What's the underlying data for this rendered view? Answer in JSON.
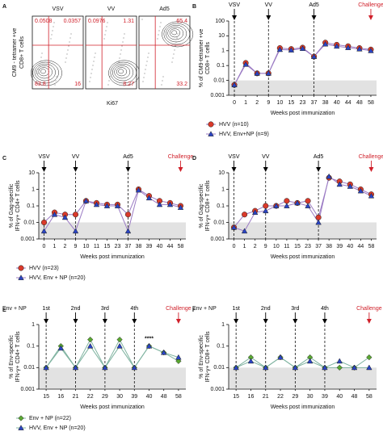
{
  "chart_data": [
    {
      "type": "flow",
      "panel": "A",
      "ylabel": [
        "CM9 - tetramer +ve",
        "CD8+ T cells"
      ],
      "xlabel": "Ki67",
      "quadrant_color": "#d0202a",
      "plots": [
        {
          "title": "VSV",
          "quadrants": [
            0.0508,
            0.0357,
            83.8,
            16
          ]
        },
        {
          "title": "VV",
          "quadrants": [
            0.0976,
            1.31,
            null,
            8.27
          ]
        },
        {
          "title": "Ad5",
          "quadrants": [
            null,
            65.4,
            null,
            33.2
          ]
        }
      ]
    },
    {
      "type": "line",
      "panel": "B",
      "ylabel": [
        "% of CM9-tetramer +ve",
        "CD8+ T cells"
      ],
      "xlabel": "Weeks post immunization",
      "categories": [
        "0",
        "1",
        "2",
        "9",
        "10",
        "15",
        "23",
        "37",
        "38",
        "40",
        "44",
        "48",
        "58"
      ],
      "ylog": true,
      "ylim": [
        0.001,
        100
      ],
      "yticks": [
        0.001,
        0.01,
        0.1,
        1,
        10,
        100
      ],
      "background": 0.01,
      "line_color": "#9b7bc4",
      "events": [
        {
          "label": "VSV",
          "category": "0",
          "color": "#000000",
          "dashed": true
        },
        {
          "label": "VV",
          "category": "9",
          "color": "#000000",
          "dashed": true
        },
        {
          "label": "Ad5",
          "category": "37",
          "color": "#000000",
          "dashed": true
        },
        {
          "label": "Challenge",
          "category": "58",
          "color": "#d0202a",
          "dashed": false
        }
      ],
      "series": [
        {
          "name": "HVV (n=10)",
          "color": "#d93a2b",
          "marker": "circle",
          "values": [
            0.005,
            0.15,
            0.03,
            0.03,
            1.5,
            1.3,
            1.6,
            0.4,
            3.5,
            2.5,
            2,
            1.5,
            1.2
          ]
        },
        {
          "name": "HVV, Env+NP (n=9)",
          "color": "#2a44c4",
          "marker": "triangle",
          "values": [
            0.005,
            0.12,
            0.03,
            0.03,
            1.2,
            1.1,
            1.4,
            0.4,
            2.8,
            2,
            1.6,
            1.3,
            1
          ]
        }
      ]
    },
    {
      "type": "line",
      "panel": "C",
      "ylabel": [
        "% of Gag-specific",
        "IFN-γ+ CD4+ T cells"
      ],
      "xlabel": "Weeks post immunization",
      "categories": [
        "0",
        "1",
        "2",
        "9",
        "10",
        "11",
        "15",
        "23",
        "37",
        "38",
        "39",
        "40",
        "44",
        "58"
      ],
      "ylog": true,
      "ylim": [
        0.001,
        10
      ],
      "yticks": [
        0.001,
        0.01,
        0.1,
        1,
        10
      ],
      "background": 0.01,
      "line_color": "#9b7bc4",
      "events": [
        {
          "label": "VSV",
          "category": "0",
          "color": "#000000",
          "dashed": true
        },
        {
          "label": "VV",
          "category": "9",
          "color": "#000000",
          "dashed": true
        },
        {
          "label": "Ad5",
          "category": "37",
          "color": "#000000",
          "dashed": true
        },
        {
          "label": "Challenge",
          "category": "58",
          "color": "#d0202a",
          "dashed": false
        }
      ],
      "series": [
        {
          "name": "HVV (n=23)",
          "color": "#d93a2b",
          "marker": "circle",
          "values": [
            0.01,
            0.04,
            0.03,
            0.03,
            0.2,
            0.15,
            0.12,
            0.12,
            0.03,
            1,
            0.4,
            0.2,
            0.15,
            0.1
          ]
        },
        {
          "name": "HVV, Env + NP (n=20)",
          "color": "#2a44c4",
          "marker": "triangle",
          "values": [
            0.003,
            0.03,
            0.02,
            0.003,
            0.2,
            0.12,
            0.1,
            0.1,
            0.003,
            0.9,
            0.3,
            0.12,
            0.12,
            0.08
          ]
        }
      ]
    },
    {
      "type": "line",
      "panel": "D",
      "ylabel": [
        "% of Gag-specific",
        "IFN-γ+ CD8+ T cells"
      ],
      "xlabel": "Weeks post immunization",
      "categories": [
        "0",
        "1",
        "2",
        "9",
        "10",
        "11",
        "15",
        "23",
        "37",
        "38",
        "39",
        "40",
        "44",
        "58"
      ],
      "ylog": true,
      "ylim": [
        0.001,
        10
      ],
      "yticks": [
        0.001,
        0.01,
        0.1,
        1,
        10
      ],
      "background": 0.01,
      "line_color": "#9b7bc4",
      "events": [
        {
          "label": "VSV",
          "category": "0",
          "color": "#000000",
          "dashed": true
        },
        {
          "label": "VV",
          "category": "9",
          "color": "#000000",
          "dashed": true
        },
        {
          "label": "Ad5",
          "category": "37",
          "color": "#000000",
          "dashed": true
        },
        {
          "label": "Challenge",
          "category": "58",
          "color": "#d0202a",
          "dashed": false
        }
      ],
      "series": [
        {
          "color": "#d93a2b",
          "marker": "circle",
          "values": [
            0.005,
            0.03,
            0.05,
            0.1,
            0.1,
            0.2,
            0.15,
            0.2,
            0.02,
            5,
            3,
            2,
            1,
            0.5
          ]
        },
        {
          "color": "#2a44c4",
          "marker": "triangle",
          "values": [
            0.005,
            0.003,
            0.04,
            0.05,
            0.1,
            0.1,
            0.15,
            0.1,
            0.01,
            6,
            2,
            1.5,
            0.8,
            0.4
          ]
        }
      ]
    },
    {
      "type": "line",
      "panel": "E",
      "group_label": "Env + NP",
      "ylabel": [
        "% of Env-specific",
        "IFN-γ+ CD4+ T cells"
      ],
      "xlabel": "Weeks post immunization",
      "categories": [
        "15",
        "16",
        "21",
        "22",
        "29",
        "30",
        "39",
        "40",
        "48",
        "58"
      ],
      "ylog": true,
      "ylim": [
        0.001,
        1
      ],
      "yticks": [
        0.001,
        0.01,
        0.1,
        1
      ],
      "background": 0.01,
      "line_color": "#7fb3a0",
      "events": [
        {
          "label": "1st",
          "category": "15",
          "color": "#000000",
          "dashed": true
        },
        {
          "label": "2nd",
          "category": "21",
          "color": "#000000",
          "dashed": true
        },
        {
          "label": "3rd",
          "category": "29",
          "color": "#000000",
          "dashed": true
        },
        {
          "label": "4th",
          "category": "39",
          "color": "#000000",
          "dashed": true
        },
        {
          "label": "Challenge",
          "category": "58",
          "color": "#d0202a",
          "dashed": false
        }
      ],
      "annotations": [
        {
          "text": "****",
          "category": "40"
        }
      ],
      "series": [
        {
          "name": "Env + NP (n=22)",
          "color": "#5aa832",
          "marker": "diamond",
          "values": [
            0.01,
            0.1,
            0.01,
            0.2,
            0.01,
            0.2,
            0.01,
            0.1,
            0.05,
            0.02
          ]
        },
        {
          "name": "HVV, Env + NP (n=20)",
          "color": "#2a44c4",
          "marker": "triangle",
          "values": [
            0.01,
            0.08,
            0.01,
            0.1,
            0.01,
            0.1,
            0.01,
            0.1,
            0.05,
            0.03
          ]
        }
      ]
    },
    {
      "type": "line",
      "panel": "F",
      "group_label": "Env + NP",
      "ylabel": [
        "% of Env-specific",
        "IFN-γ+ CD8+ T cells"
      ],
      "xlabel": "Weeks post immunization",
      "categories": [
        "15",
        "16",
        "21",
        "22",
        "29",
        "30",
        "39",
        "40",
        "48",
        "58"
      ],
      "ylog": true,
      "ylim": [
        0.001,
        1
      ],
      "yticks": [
        0.001,
        0.01,
        0.1,
        1
      ],
      "background": 0.01,
      "line_color": "#7fb3a0",
      "events": [
        {
          "label": "1st",
          "category": "15",
          "color": "#000000",
          "dashed": true
        },
        {
          "label": "2nd",
          "category": "21",
          "color": "#000000",
          "dashed": true
        },
        {
          "label": "3rd",
          "category": "29",
          "color": "#000000",
          "dashed": true
        },
        {
          "label": "4th",
          "category": "39",
          "color": "#000000",
          "dashed": true
        },
        {
          "label": "Challenge",
          "category": "58",
          "color": "#d0202a",
          "dashed": false
        }
      ],
      "series": [
        {
          "color": "#5aa832",
          "marker": "diamond",
          "values": [
            0.01,
            0.03,
            0.01,
            0.03,
            0.01,
            0.03,
            0.01,
            0.01,
            0.01,
            0.03
          ]
        },
        {
          "color": "#2a44c4",
          "marker": "triangle",
          "values": [
            0.01,
            0.02,
            0.01,
            0.03,
            0.01,
            0.02,
            0.01,
            0.02,
            0.01,
            0.01
          ]
        }
      ]
    }
  ]
}
